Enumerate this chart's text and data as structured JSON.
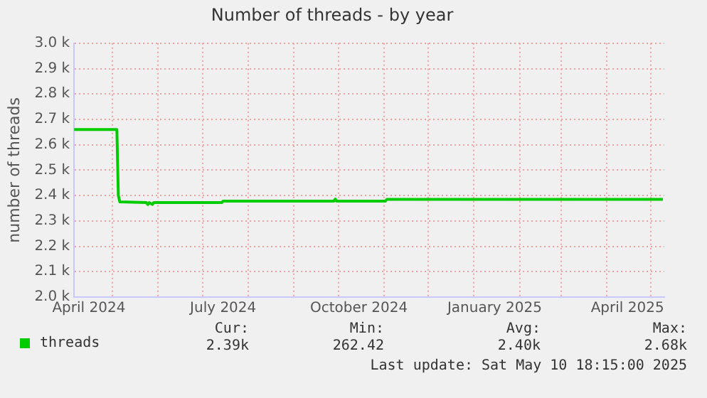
{
  "chart_data": {
    "type": "line",
    "title": "Number of threads - by year",
    "ylabel": "number of threads",
    "x": [
      "2024-04-05",
      "2024-05-04",
      "2024-05-05",
      "2024-05-06",
      "2024-05-24",
      "2024-05-25",
      "2024-05-26",
      "2024-05-28",
      "2024-05-29",
      "2024-07-14",
      "2024-07-15",
      "2024-09-28",
      "2024-09-29",
      "2024-09-30",
      "2024-11-02",
      "2024-11-03",
      "2025-05-09"
    ],
    "series": [
      {
        "name": "threads",
        "color": "#00cc00",
        "values": [
          2660,
          2660,
          2400,
          2375,
          2372,
          2365,
          2372,
          2365,
          2372,
          2372,
          2378,
          2378,
          2386,
          2378,
          2378,
          2385,
          2385
        ]
      }
    ],
    "xlim": [
      "2024-04-05",
      "2025-05-10"
    ],
    "xticks": [
      {
        "value": "2024-04-15",
        "label": "April 2024"
      },
      {
        "value": "2024-05-01",
        "label": null
      },
      {
        "value": "2024-06-01",
        "label": null
      },
      {
        "value": "2024-07-01",
        "label": null
      },
      {
        "value": "2024-07-15",
        "label": "July 2024"
      },
      {
        "value": "2024-08-01",
        "label": null
      },
      {
        "value": "2024-09-01",
        "label": null
      },
      {
        "value": "2024-10-01",
        "label": null
      },
      {
        "value": "2024-10-15",
        "label": "October 2024"
      },
      {
        "value": "2024-11-01",
        "label": null
      },
      {
        "value": "2024-12-01",
        "label": null
      },
      {
        "value": "2025-01-01",
        "label": null
      },
      {
        "value": "2025-01-15",
        "label": "January 2025"
      },
      {
        "value": "2025-02-01",
        "label": null
      },
      {
        "value": "2025-03-01",
        "label": null
      },
      {
        "value": "2025-04-01",
        "label": null
      },
      {
        "value": "2025-04-15",
        "label": "April 2025"
      },
      {
        "value": "2025-05-01",
        "label": null
      }
    ],
    "ylim": [
      2000,
      3000
    ],
    "yticks": [
      {
        "value": 2000,
        "label": "2.0 k"
      },
      {
        "value": 2100,
        "label": "2.1 k"
      },
      {
        "value": 2200,
        "label": "2.2 k"
      },
      {
        "value": 2300,
        "label": "2.3 k"
      },
      {
        "value": 2400,
        "label": "2.4 k"
      },
      {
        "value": 2500,
        "label": "2.5 k"
      },
      {
        "value": 2600,
        "label": "2.6 k"
      },
      {
        "value": 2700,
        "label": "2.7 k"
      },
      {
        "value": 2800,
        "label": "2.8 k"
      },
      {
        "value": 2900,
        "label": "2.9 k"
      },
      {
        "value": 3000,
        "label": "3.0 k"
      }
    ],
    "grid": true,
    "legend": "bottom",
    "marker": "none",
    "line_style": "solid",
    "annotations": [
      "Cur:",
      "2.39k",
      "Min:",
      "262.42",
      "Avg:",
      "2.40k",
      "Max:",
      "2.68k",
      "Last update: Sat May 10 18:15:00 2025"
    ]
  }
}
